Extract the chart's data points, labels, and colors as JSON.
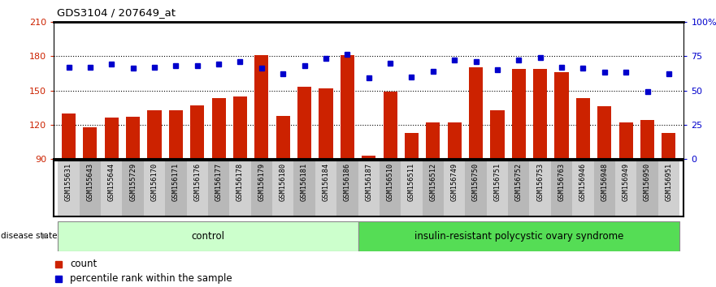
{
  "title": "GDS3104 / 207649_at",
  "samples": [
    "GSM155631",
    "GSM155643",
    "GSM155644",
    "GSM155729",
    "GSM156170",
    "GSM156171",
    "GSM156176",
    "GSM156177",
    "GSM156178",
    "GSM156179",
    "GSM156180",
    "GSM156181",
    "GSM156184",
    "GSM156186",
    "GSM156187",
    "GSM156510",
    "GSM156511",
    "GSM156512",
    "GSM156749",
    "GSM156750",
    "GSM156751",
    "GSM156752",
    "GSM156753",
    "GSM156763",
    "GSM156946",
    "GSM156948",
    "GSM156949",
    "GSM156950",
    "GSM156951"
  ],
  "counts": [
    130,
    118,
    126,
    127,
    133,
    133,
    137,
    143,
    145,
    181,
    128,
    153,
    152,
    181,
    93,
    149,
    113,
    122,
    122,
    170,
    133,
    169,
    169,
    166,
    143,
    136,
    122,
    124,
    113
  ],
  "percentiles": [
    67,
    67,
    69,
    66,
    67,
    68,
    68,
    69,
    71,
    66,
    62,
    68,
    73,
    76,
    59,
    70,
    60,
    64,
    72,
    71,
    65,
    72,
    74,
    67,
    66,
    63,
    63,
    49,
    62
  ],
  "control_count": 14,
  "disease_label": "insulin-resistant polycystic ovary syndrome",
  "control_label": "control",
  "bar_color": "#cc2200",
  "dot_color": "#0000cc",
  "ymin": 90,
  "ymax": 210,
  "yticks_left": [
    90,
    120,
    150,
    180,
    210
  ],
  "ytick_labels_left": [
    "90",
    "120",
    "150",
    "180",
    "210"
  ],
  "yticks_right": [
    0,
    25,
    50,
    75,
    100
  ],
  "ytick_labels_right": [
    "0",
    "25",
    "50",
    "75",
    "100%"
  ],
  "hlines": [
    120,
    150,
    180
  ],
  "control_bg": "#ccffcc",
  "disease_bg": "#55dd55",
  "band_light": "#d0d0d0",
  "band_dark": "#b8b8b8",
  "legend_count_label": "count",
  "legend_pct_label": "percentile rank within the sample"
}
